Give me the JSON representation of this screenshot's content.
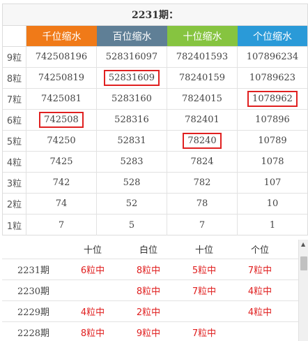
{
  "title": "2231期：",
  "headers": [
    {
      "label": "千位缩水",
      "color": "#f07a18"
    },
    {
      "label": "百位缩水",
      "color": "#5f7f96"
    },
    {
      "label": "十位缩水",
      "color": "#86c440"
    },
    {
      "label": "个位缩水",
      "color": "#2a9ad8"
    }
  ],
  "rows": [
    {
      "label": "9粒",
      "cells": [
        "742508196",
        "528316097",
        "782401593",
        "107896234"
      ]
    },
    {
      "label": "8粒",
      "cells": [
        "74250819",
        "52831609",
        "78240159",
        "10789623"
      ]
    },
    {
      "label": "7粒",
      "cells": [
        "7425081",
        "5283160",
        "7824015",
        "1078962"
      ]
    },
    {
      "label": "6粒",
      "cells": [
        "742508",
        "528316",
        "782401",
        "107896"
      ]
    },
    {
      "label": "5粒",
      "cells": [
        "74250",
        "52831",
        "78240",
        "10789"
      ]
    },
    {
      "label": "4粒",
      "cells": [
        "7425",
        "5283",
        "7824",
        "1078"
      ]
    },
    {
      "label": "3粒",
      "cells": [
        "742",
        "528",
        "782",
        "107"
      ]
    },
    {
      "label": "2粒",
      "cells": [
        "74",
        "52",
        "78",
        "10"
      ]
    },
    {
      "label": "1粒",
      "cells": [
        "7",
        "5",
        "7",
        "1"
      ]
    }
  ],
  "highlights": [
    {
      "row": 1,
      "col": 1
    },
    {
      "row": 2,
      "col": 3
    },
    {
      "row": 3,
      "col": 0
    },
    {
      "row": 4,
      "col": 2
    }
  ],
  "history": {
    "headers": [
      "",
      "十位",
      "白位",
      "十位",
      "个位"
    ],
    "rows": [
      {
        "period": "2231期",
        "cells": [
          "6粒中",
          "8粒中",
          "5粒中",
          "7粒中"
        ]
      },
      {
        "period": "2230期",
        "cells": [
          "",
          "8粒中",
          "7粒中",
          "4粒中"
        ]
      },
      {
        "period": "2229期",
        "cells": [
          "4粒中",
          "2粒中",
          "",
          "4粒中"
        ]
      },
      {
        "period": "2228期",
        "cells": [
          "8粒中",
          "9粒中",
          "7粒中",
          ""
        ]
      }
    ]
  },
  "scrollbar": {
    "up_icon": "▲"
  }
}
